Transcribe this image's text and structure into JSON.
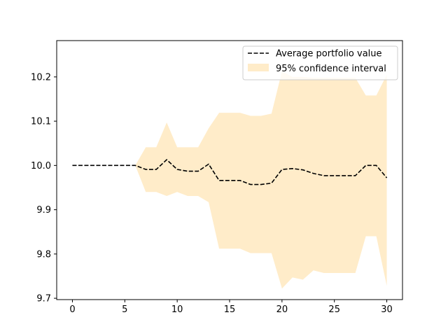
{
  "chart_data": {
    "type": "line",
    "title": "",
    "xlabel": "",
    "ylabel": "",
    "xlim": [
      -1.5,
      31.5
    ],
    "ylim": [
      9.697,
      10.282
    ],
    "xticks": [
      0,
      5,
      10,
      15,
      20,
      25,
      30
    ],
    "yticks": [
      9.7,
      9.8,
      9.9,
      10.0,
      10.1,
      10.2
    ],
    "x": [
      0,
      1,
      2,
      3,
      4,
      5,
      6,
      7,
      8,
      9,
      10,
      11,
      12,
      13,
      14,
      15,
      16,
      17,
      18,
      19,
      20,
      21,
      22,
      23,
      24,
      25,
      26,
      27,
      28,
      29,
      30
    ],
    "series": [
      {
        "name": "Average portfolio value",
        "style": "dashed",
        "color": "#000000",
        "values": [
          10.0,
          10.0,
          10.0,
          10.0,
          10.0,
          10.0,
          10.0,
          9.991,
          9.991,
          10.013,
          9.991,
          9.987,
          9.987,
          10.003,
          9.966,
          9.966,
          9.966,
          9.957,
          9.957,
          9.96,
          9.991,
          9.993,
          9.99,
          9.982,
          9.977,
          9.977,
          9.977,
          9.977,
          10.0,
          10.0,
          9.972
        ]
      }
    ],
    "band": {
      "name": "95% confidence interval",
      "color": "#FFECC9",
      "lower": [
        10.0,
        10.0,
        10.0,
        10.0,
        10.0,
        10.0,
        10.0,
        9.94,
        9.94,
        9.931,
        9.94,
        9.931,
        9.931,
        9.917,
        9.812,
        9.812,
        9.812,
        9.802,
        9.802,
        9.802,
        9.722,
        9.747,
        9.742,
        9.763,
        9.757,
        9.757,
        9.757,
        9.757,
        9.84,
        9.84,
        9.728
      ],
      "upper": [
        10.0,
        10.0,
        10.0,
        10.0,
        10.0,
        10.0,
        10.0,
        10.041,
        10.041,
        10.097,
        10.041,
        10.041,
        10.041,
        10.084,
        10.119,
        10.119,
        10.119,
        10.112,
        10.112,
        10.117,
        10.213,
        10.2,
        10.2,
        10.198,
        10.198,
        10.198,
        10.198,
        10.198,
        10.158,
        10.158,
        10.205
      ]
    },
    "grid": false,
    "legend_position": "top-right"
  }
}
